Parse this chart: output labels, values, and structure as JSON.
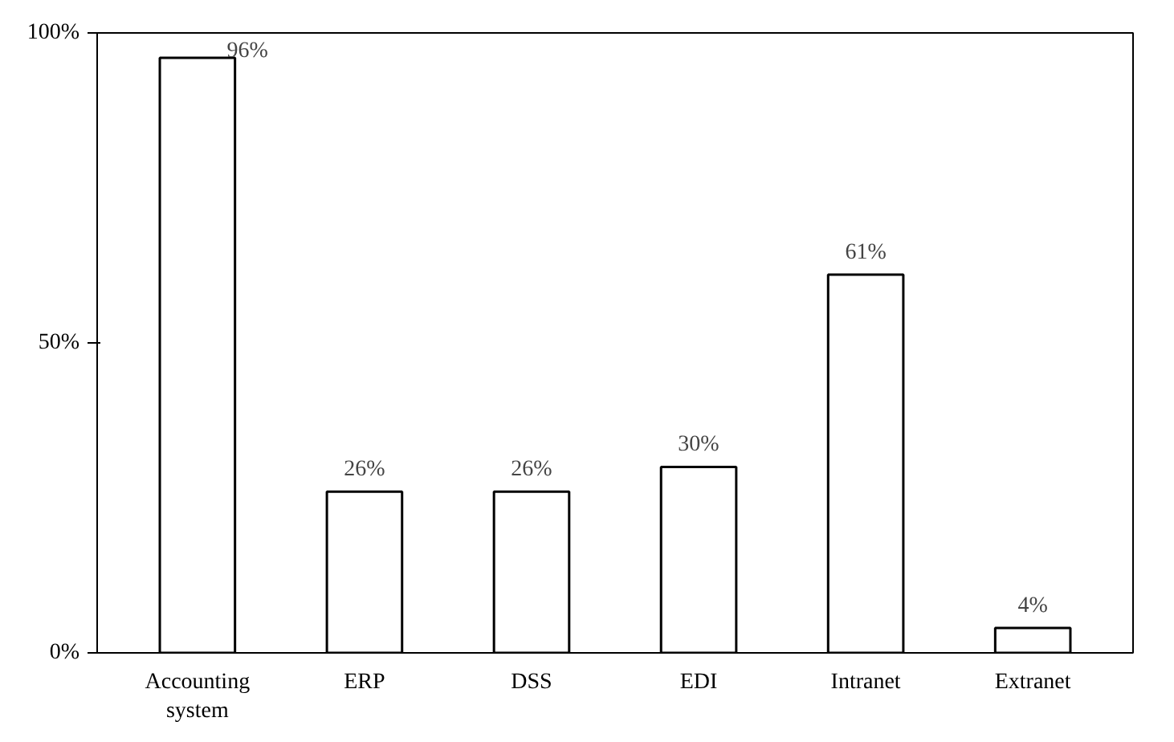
{
  "chart_data": {
    "type": "bar",
    "categories": [
      "Accounting system",
      "ERP",
      "DSS",
      "EDI",
      "Intranet",
      "Extranet"
    ],
    "values": [
      96,
      26,
      26,
      30,
      61,
      4
    ],
    "value_labels": [
      "96%",
      "26%",
      "26%",
      "30%",
      "61%",
      "4%"
    ],
    "color": "#ffffff",
    "ylim": [
      0,
      100
    ],
    "yticks": [
      {
        "value": 0,
        "label": "0%"
      },
      {
        "value": 50,
        "label": "50%"
      },
      {
        "value": 100,
        "label": "100%"
      }
    ],
    "grid": false
  }
}
